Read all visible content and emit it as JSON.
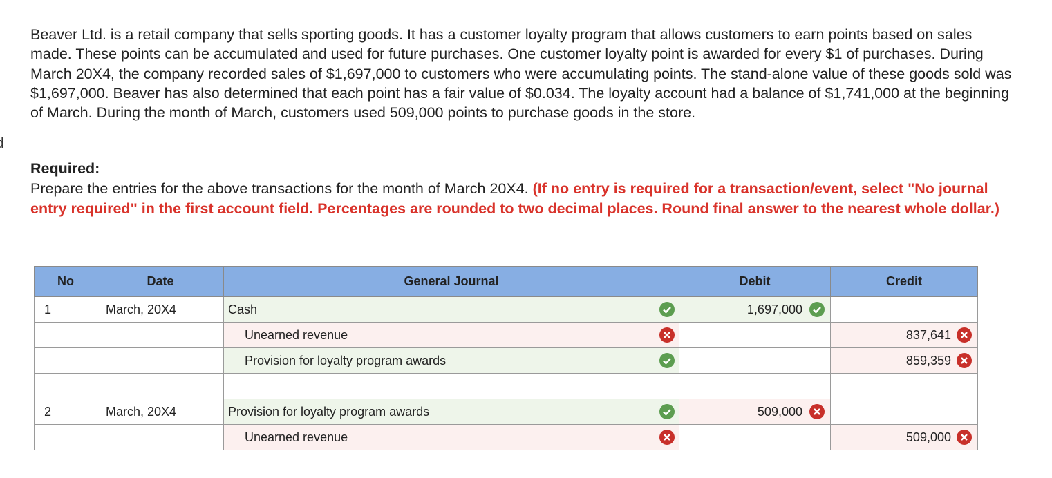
{
  "edge_fragment": "d",
  "problem": {
    "text": "Beaver Ltd. is a retail company that sells sporting goods. It has a customer loyalty program that allows customers to earn points based on sales made. These points can be accumulated and used for future purchases. One customer loyalty point is awarded for every $1 of purchases. During March 20X4, the company recorded sales of $1,697,000 to customers who were accumulating points. The stand-alone value of these goods sold was $1,697,000. Beaver has also determined that each point has a fair value of $0.034. The loyalty account had a balance of $1,741,000 at the beginning of March. During the month of March, customers used 509,000 points to purchase goods in the store.",
    "required_heading": "Required:",
    "instruction": "Prepare the entries for the above transactions for the month of March 20X4.",
    "instruction_note": "(If no entry is required for a transaction/event, select \"No journal entry required\" in the first account field. Percentages are rounded to two decimal places. Round final answer to the nearest whole dollar.)"
  },
  "table": {
    "headers": [
      "No",
      "Date",
      "General Journal",
      "Debit",
      "Credit"
    ],
    "rows": [
      {
        "no": "1",
        "date": "March, 20X4",
        "account": "Cash",
        "debit": "1,697,000"
      },
      {
        "account": "Unearned revenue",
        "credit": "837,641"
      },
      {
        "account": "Provision for loyalty program awards",
        "credit": "859,359"
      },
      {},
      {
        "no": "2",
        "date": "March, 20X4",
        "account": "Provision for loyalty program awards",
        "debit": "509,000"
      },
      {
        "account": "Unearned revenue",
        "credit": "509,000"
      }
    ]
  }
}
